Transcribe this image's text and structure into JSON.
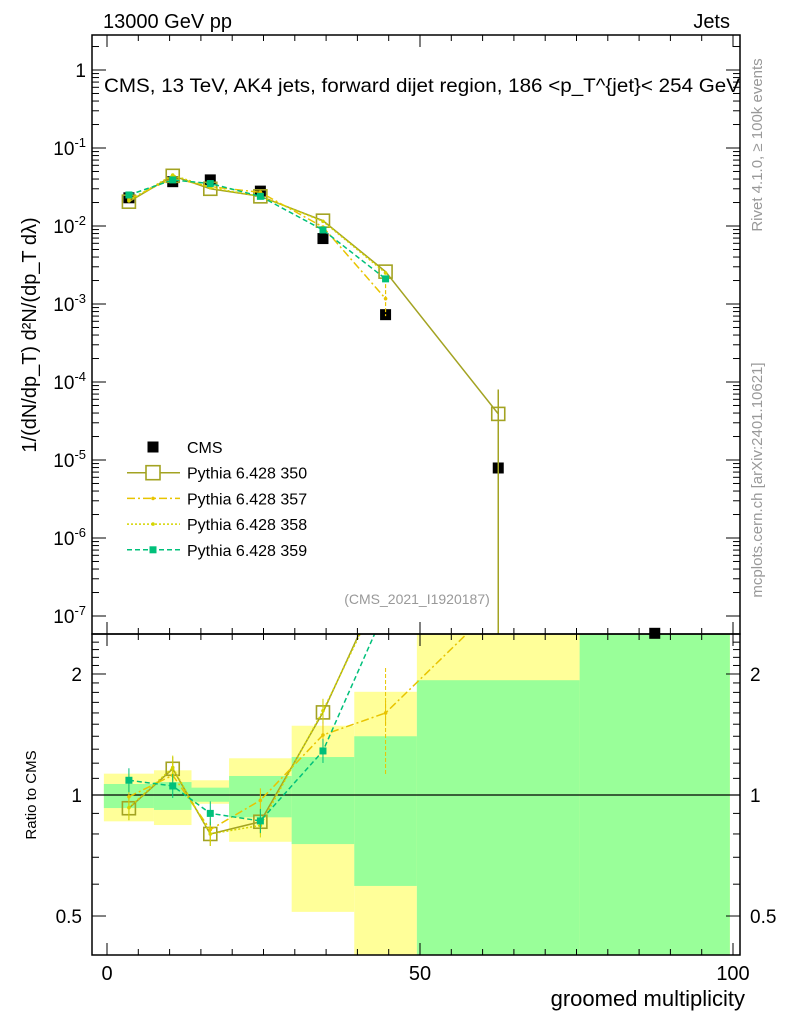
{
  "header": {
    "left": "13000 GeV pp",
    "right": "Jets"
  },
  "side_labels": {
    "rivet": "Rivet 4.1.0, ≥ 100k events",
    "mcplots": "mcplots.cern.ch [arXiv:2401.10621]"
  },
  "chart_data": [
    {
      "type": "line",
      "title": "CMS, 13 TeV, AK4 jets, forward dijet region, 186 <p_T^{jet}< 254 GeV",
      "analysis_tag": "(CMS_2021_I1920187)",
      "xlabel": "groomed multiplicity",
      "ylabel": "1/(dN/dp_T) d²N/(dp_T dλ)",
      "yscale": "log",
      "xlim": [
        -2,
        101
      ],
      "ylim": [
        5.9e-08,
        2.8
      ],
      "ytick_labels": [
        "1",
        "10^-1",
        "10^-2",
        "10^-3",
        "10^-4",
        "10^-5",
        "10^-6",
        "10^-7"
      ],
      "legend_position": "lower-left",
      "bin_edges": [
        -0.5,
        7.5,
        13.5,
        19.5,
        29.5,
        39.5,
        49.5,
        75.5,
        99.5
      ],
      "x": [
        3.5,
        10.5,
        16.5,
        24.5,
        34.5,
        44.5,
        62.5,
        87.5
      ],
      "series": [
        {
          "name": "CMS",
          "style": "data",
          "color": "#000000",
          "values": [
            0.023,
            0.037,
            0.039,
            0.028,
            0.0069,
            0.00073,
            7.9e-06,
            6e-08
          ]
        },
        {
          "name": "Pythia 6.428 350",
          "style": "solid-open-square",
          "color": "#a3a322",
          "values": [
            0.0205,
            0.044,
            0.03,
            0.024,
            0.0117,
            0.0026,
            3.9e-05,
            null
          ]
        },
        {
          "name": "Pythia 6.428 357",
          "style": "dashdot",
          "color": "#e8c400",
          "values": [
            0.022,
            0.041,
            0.032,
            0.027,
            0.0097,
            0.00117,
            null,
            null
          ]
        },
        {
          "name": "Pythia 6.428 358",
          "style": "dotted",
          "color": "#d4d400",
          "values": [
            0.021,
            0.045,
            0.031,
            0.024,
            0.0115,
            0.0025,
            null,
            null
          ]
        },
        {
          "name": "Pythia 6.428 359",
          "style": "dashed-square",
          "color": "#00c07a",
          "values": [
            0.025,
            0.039,
            0.035,
            0.024,
            0.0089,
            0.0021,
            null,
            null
          ]
        }
      ]
    },
    {
      "type": "line",
      "ylabel": "Ratio to CMS",
      "xlabel": "groomed multiplicity",
      "yscale": "log",
      "ylim": [
        0.4,
        2.51
      ],
      "ytick_labels": [
        "0.5",
        "1",
        "2"
      ],
      "xtick_labels": [
        "0",
        "50",
        "100"
      ],
      "bands": {
        "yellow_total": [
          [
            0.86,
            1.13
          ],
          [
            0.842,
            1.152
          ],
          [
            0.951,
            1.088
          ],
          [
            0.765,
            1.234
          ],
          [
            0.512,
            1.487
          ],
          [
            0.35,
            1.806
          ],
          [
            0.3,
            3.0
          ],
          [
            0.3,
            3.0
          ]
        ],
        "green_stat": [
          [
            0.928,
            1.065
          ],
          [
            0.918,
            1.077
          ],
          [
            0.962,
            1.043
          ],
          [
            0.88,
            1.115
          ],
          [
            0.755,
            1.243
          ],
          [
            0.594,
            1.4
          ],
          [
            0.3,
            1.93
          ],
          [
            0.3,
            3.0
          ]
        ]
      },
      "series": [
        {
          "name": "Pythia 6.428 350",
          "color": "#a3a322",
          "values": [
            0.927,
            1.162,
            0.8,
            0.858,
            1.605,
            3.5,
            null,
            null
          ]
        },
        {
          "name": "Pythia 6.428 357",
          "color": "#e8c400",
          "values": [
            0.99,
            1.12,
            0.82,
            0.97,
            1.41,
            1.6,
            3.0,
            null
          ]
        },
        {
          "name": "Pythia 6.428 358",
          "color": "#d4d400",
          "values": [
            0.93,
            1.17,
            0.8,
            0.84,
            1.62,
            3.4,
            null,
            null
          ]
        },
        {
          "name": "Pythia 6.428 359",
          "color": "#00c07a",
          "values": [
            1.088,
            1.053,
            0.9,
            0.862,
            1.287,
            2.9,
            null,
            null
          ]
        }
      ]
    }
  ]
}
